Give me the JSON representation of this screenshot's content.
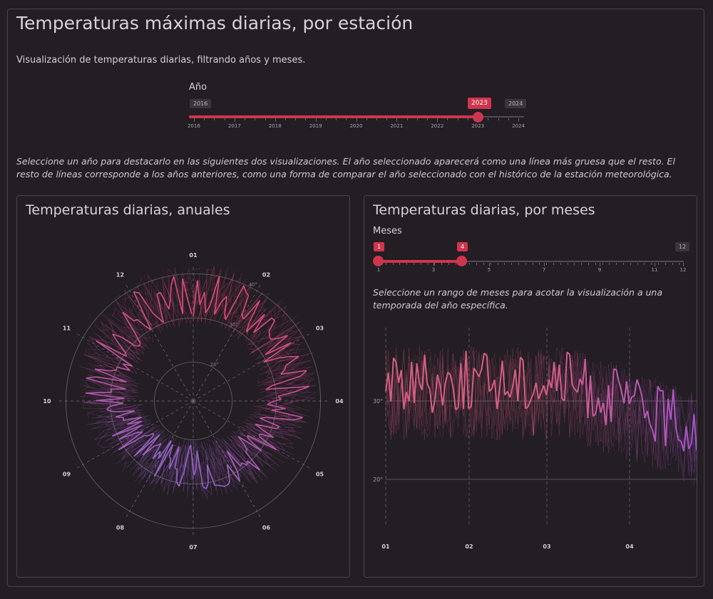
{
  "page": {
    "title": "Temperaturas máximas diarias, por estación",
    "subtitle": "Visualización de temperaturas diarias, filtrando años y meses."
  },
  "year_slider": {
    "label": "Año",
    "min_label": "2016",
    "max_label": "2024",
    "selected": "2023",
    "ticks": [
      "2016",
      "2017",
      "2018",
      "2019",
      "2020",
      "2021",
      "2022",
      "2023",
      "2024"
    ],
    "fraction": 0.875
  },
  "year_help": "Seleccione un año para destacarlo en las siguientes dos visualizaciones. El año seleccionado aparecerá como una línea más gruesa que el resto. El resto de líneas corresponde a los años anteriores, como una forma de comparar el año seleccionado con el histórico de la estación meteorológica.",
  "annual_card": {
    "title": "Temperaturas diarias, anuales",
    "months": [
      "01",
      "02",
      "03",
      "04",
      "05",
      "06",
      "07",
      "08",
      "09",
      "10",
      "11",
      "12"
    ],
    "ring_labels": [
      "40°",
      "30°",
      "20°"
    ]
  },
  "monthly_card": {
    "title": "Temperaturas diarias, por meses",
    "slider": {
      "label": "Meses",
      "from": "1",
      "to": "4",
      "max_label": "12",
      "ticks": [
        "1",
        "3",
        "5",
        "7",
        "9",
        "11",
        "12"
      ]
    },
    "help": "Seleccione un rango de meses para acotar la visualización a una temporada del año específica.",
    "x_labels": [
      "01",
      "02",
      "03",
      "04"
    ],
    "y_labels": [
      "30°",
      "20°"
    ]
  },
  "chart_data": [
    {
      "type": "line",
      "title": "Temperaturas diarias, anuales",
      "polar": true,
      "angle_categories": [
        "01",
        "02",
        "03",
        "04",
        "05",
        "06",
        "07",
        "08",
        "09",
        "10",
        "11",
        "12"
      ],
      "radial_ticks": [
        "20°",
        "30°",
        "40°"
      ],
      "series": [
        {
          "name": "2023",
          "highlight": true,
          "values": [
            33,
            34,
            31,
            30,
            27,
            24,
            22,
            23,
            25,
            28,
            31,
            33
          ]
        }
      ]
    },
    {
      "type": "line",
      "title": "Temperaturas diarias, por meses",
      "x_labels": [
        "01",
        "02",
        "03",
        "04"
      ],
      "y_ticks": [
        "20°",
        "30°"
      ],
      "series": [
        {
          "name": "2023",
          "highlight": true,
          "values": [
            30,
            31,
            32,
            30,
            33,
            31,
            32,
            34,
            31,
            30,
            32,
            31,
            30,
            29,
            28,
            25,
            22,
            24
          ]
        }
      ]
    }
  ]
}
